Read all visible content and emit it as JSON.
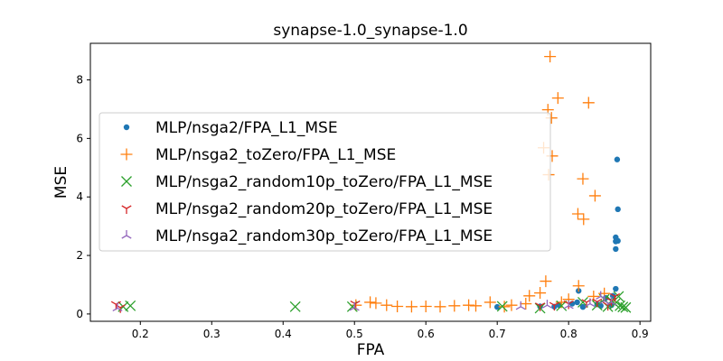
{
  "chart_data": {
    "type": "scatter",
    "title": "synapse-1.0_synapse-1.0",
    "xlabel": "FPA",
    "ylabel": "MSE",
    "xlim": [
      0.13,
      0.915
    ],
    "ylim": [
      -0.25,
      9.25
    ],
    "xticks": [
      0.2,
      0.3,
      0.4,
      0.5,
      0.6,
      0.7,
      0.8,
      0.9
    ],
    "yticks": [
      0,
      2,
      4,
      6,
      8
    ],
    "grid": false,
    "legend_position": "center-left",
    "series": [
      {
        "name": "MLP/nsga2/FPA_L1_MSE",
        "marker": "circle",
        "color": "#1f77b4",
        "points": [
          [
            0.868,
            5.28
          ],
          [
            0.869,
            3.58
          ],
          [
            0.866,
            2.62
          ],
          [
            0.869,
            2.5
          ],
          [
            0.866,
            2.48
          ],
          [
            0.866,
            2.22
          ],
          [
            0.866,
            0.86
          ],
          [
            0.814,
            0.79
          ],
          [
            0.862,
            0.62
          ],
          [
            0.812,
            0.4
          ],
          [
            0.787,
            0.3
          ],
          [
            0.805,
            0.35
          ],
          [
            0.84,
            0.33
          ],
          [
            0.852,
            0.55
          ],
          [
            0.7,
            0.24
          ],
          [
            0.76,
            0.26
          ],
          [
            0.78,
            0.25
          ],
          [
            0.82,
            0.24
          ],
          [
            0.845,
            0.28
          ],
          [
            0.86,
            0.3
          ]
        ]
      },
      {
        "name": "MLP/nsga2_toZero/FPA_L1_MSE",
        "marker": "plus",
        "color": "#ff7f0e",
        "points": [
          [
            0.774,
            8.8
          ],
          [
            0.785,
            7.38
          ],
          [
            0.828,
            7.22
          ],
          [
            0.771,
            6.98
          ],
          [
            0.776,
            6.7
          ],
          [
            0.765,
            5.68
          ],
          [
            0.777,
            5.4
          ],
          [
            0.772,
            4.76
          ],
          [
            0.82,
            4.62
          ],
          [
            0.837,
            4.04
          ],
          [
            0.813,
            3.42
          ],
          [
            0.821,
            3.24
          ],
          [
            0.768,
            1.12
          ],
          [
            0.814,
            0.96
          ],
          [
            0.76,
            0.72
          ],
          [
            0.745,
            0.62
          ],
          [
            0.502,
            0.3
          ],
          [
            0.522,
            0.4
          ],
          [
            0.53,
            0.37
          ],
          [
            0.545,
            0.3
          ],
          [
            0.56,
            0.26
          ],
          [
            0.58,
            0.25
          ],
          [
            0.6,
            0.26
          ],
          [
            0.62,
            0.25
          ],
          [
            0.64,
            0.28
          ],
          [
            0.66,
            0.3
          ],
          [
            0.67,
            0.28
          ],
          [
            0.69,
            0.4
          ],
          [
            0.71,
            0.25
          ],
          [
            0.72,
            0.3
          ],
          [
            0.74,
            0.35
          ],
          [
            0.79,
            0.4
          ],
          [
            0.8,
            0.5
          ],
          [
            0.835,
            0.6
          ],
          [
            0.85,
            0.7
          ]
        ]
      },
      {
        "name": "MLP/nsga2_random10p_toZero/FPA_L1_MSE",
        "marker": "x",
        "color": "#2ca02c",
        "points": [
          [
            0.176,
            0.25
          ],
          [
            0.186,
            0.28
          ],
          [
            0.417,
            0.25
          ],
          [
            0.497,
            0.25
          ],
          [
            0.707,
            0.26
          ],
          [
            0.76,
            0.2
          ],
          [
            0.79,
            0.28
          ],
          [
            0.82,
            0.4
          ],
          [
            0.84,
            0.3
          ],
          [
            0.855,
            0.25
          ],
          [
            0.865,
            0.35
          ],
          [
            0.87,
            0.6
          ],
          [
            0.872,
            0.28
          ],
          [
            0.876,
            0.24
          ],
          [
            0.88,
            0.22
          ],
          [
            0.86,
            0.45
          ],
          [
            0.85,
            0.5
          ]
        ]
      },
      {
        "name": "MLP/nsga2_random20p_toZero/FPA_L1_MSE",
        "marker": "tri-down",
        "color": "#d62728",
        "points": [
          [
            0.166,
            0.33
          ],
          [
            0.172,
            0.22
          ],
          [
            0.501,
            0.35
          ],
          [
            0.76,
            0.28
          ],
          [
            0.78,
            0.3
          ],
          [
            0.8,
            0.35
          ],
          [
            0.825,
            0.4
          ],
          [
            0.84,
            0.42
          ],
          [
            0.86,
            0.45
          ],
          [
            0.865,
            0.6
          ],
          [
            0.855,
            0.3
          ]
        ]
      },
      {
        "name": "MLP/nsga2_random30p_toZero/FPA_L1_MSE",
        "marker": "tri-up",
        "color": "#9467bd",
        "points": [
          [
            0.168,
            0.2
          ],
          [
            0.5,
            0.22
          ],
          [
            0.733,
            0.25
          ],
          [
            0.77,
            0.3
          ],
          [
            0.8,
            0.28
          ],
          [
            0.83,
            0.35
          ],
          [
            0.845,
            0.6
          ],
          [
            0.85,
            0.45
          ],
          [
            0.86,
            0.4
          ]
        ]
      }
    ]
  }
}
